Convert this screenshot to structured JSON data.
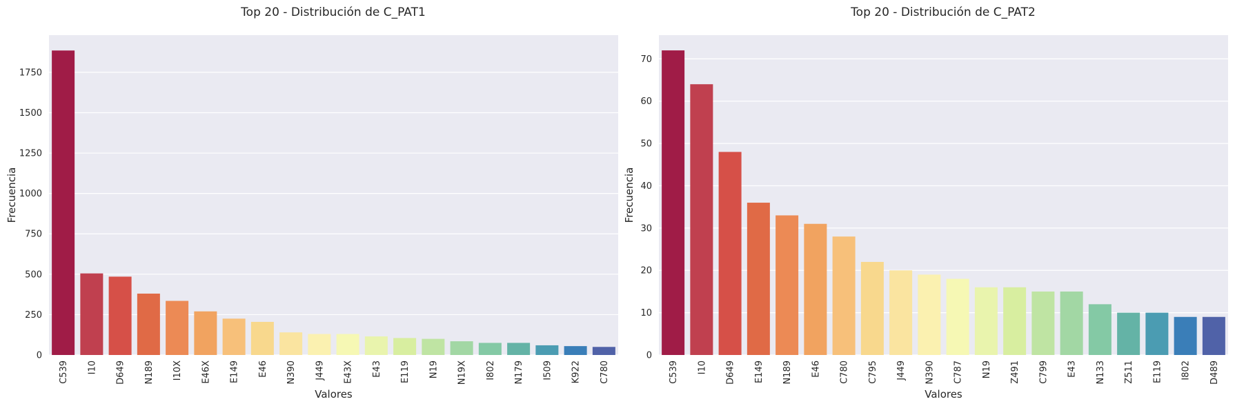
{
  "chart_data": [
    {
      "type": "bar",
      "title": "Top 20 - Distribución de C_PAT1",
      "xlabel": "Valores",
      "ylabel": "Frecuencia",
      "ylim": [
        0,
        1980
      ],
      "yticks": [
        0,
        250,
        500,
        750,
        1000,
        1250,
        1500,
        1750
      ],
      "grid": true,
      "categories": [
        "C539",
        "I10",
        "D649",
        "N189",
        "I10X",
        "E46X",
        "E149",
        "E46",
        "N390",
        "J449",
        "E43X",
        "E43",
        "E119",
        "N19",
        "N19X",
        "I802",
        "N179",
        "I509",
        "K922",
        "C780"
      ],
      "values": [
        1885,
        505,
        485,
        380,
        335,
        270,
        225,
        205,
        140,
        130,
        130,
        115,
        105,
        100,
        85,
        75,
        75,
        60,
        55,
        50
      ]
    },
    {
      "type": "bar",
      "title": "Top 20 - Distribución de C_PAT2",
      "xlabel": "Valores",
      "ylabel": "Frecuencia",
      "ylim": [
        0,
        75.6
      ],
      "yticks": [
        0,
        10,
        20,
        30,
        40,
        50,
        60,
        70
      ],
      "grid": true,
      "categories": [
        "C539",
        "I10",
        "D649",
        "E149",
        "N189",
        "E46",
        "C780",
        "C795",
        "J449",
        "N390",
        "C787",
        "N19",
        "Z491",
        "C799",
        "E43",
        "N133",
        "Z511",
        "E119",
        "I802",
        "D489"
      ],
      "values": [
        72,
        64,
        48,
        36,
        33,
        31,
        28,
        22,
        20,
        19,
        18,
        16,
        16,
        15,
        15,
        12,
        10,
        10,
        9,
        9
      ]
    }
  ],
  "palette": [
    "#a01c47",
    "#c0404f",
    "#d65048",
    "#e06a46",
    "#ec8a55",
    "#f1a360",
    "#f7c07a",
    "#f8d88d",
    "#fae4a0",
    "#fbf1b0",
    "#f6f8b4",
    "#e9f4ad",
    "#d8eea0",
    "#bfe4a3",
    "#a2d7a4",
    "#84c9a5",
    "#64b3a6",
    "#4b9cb2",
    "#3a7eb8",
    "#5062a8"
  ]
}
